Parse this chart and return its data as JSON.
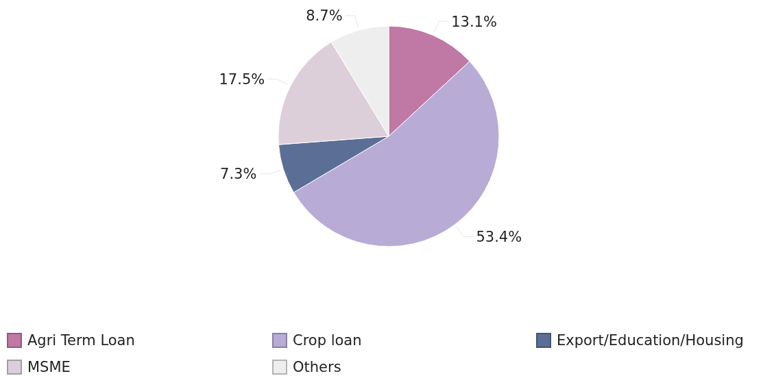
{
  "chart_data": {
    "type": "pie",
    "categories": [
      "Agri Term Loan",
      "Crop loan",
      "Export/Education/Housing",
      "MSME",
      "Others"
    ],
    "values": [
      13.1,
      53.4,
      7.3,
      17.5,
      8.7
    ],
    "colors": [
      "#c078a5",
      "#b8acd6",
      "#5b6e96",
      "#dccfd9",
      "#efeeef"
    ],
    "value_labels": [
      "13.1%",
      "53.4%",
      "7.3%",
      "17.5%",
      "8.7%"
    ],
    "legend": "bottom"
  }
}
